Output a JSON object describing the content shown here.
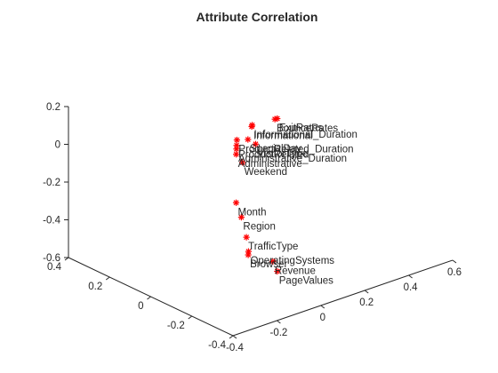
{
  "chart_data": {
    "type": "scatter",
    "title": "Attribute Correlation",
    "xlabel": "",
    "ylabel": "",
    "zlabel": "",
    "x_ticks": [
      "-0.4",
      "-0.2",
      "0",
      "0.2",
      "0.4"
    ],
    "y_ticks": [
      "-0.4",
      "-0.2",
      "0",
      "0.2",
      "0.4",
      "0.6"
    ],
    "z_ticks": [
      "-0.6",
      "-0.4",
      "-0.2",
      "0",
      "0.2"
    ],
    "xlim": [
      -0.4,
      0.4
    ],
    "ylim": [
      -0.4,
      0.6
    ],
    "zlim": [
      -0.6,
      0.2
    ],
    "grid": false,
    "marker": "*",
    "marker_color": "#ff0000",
    "points": [
      {
        "label": "Informational",
        "x": -0.16,
        "y": -0.09,
        "z": 0.26
      },
      {
        "label": "Informational_Duration",
        "x": -0.13,
        "y": -0.06,
        "z": 0.24
      },
      {
        "label": "ProductRelated_Duration",
        "x": -0.12,
        "y": -0.12,
        "z": 0.18
      },
      {
        "label": "Administrative",
        "x": -0.17,
        "y": -0.17,
        "z": 0.15
      },
      {
        "label": "Administrative_Duration",
        "x": -0.15,
        "y": -0.15,
        "z": 0.16
      },
      {
        "label": "ProductRelated",
        "x": -0.14,
        "y": -0.14,
        "z": 0.17
      },
      {
        "label": "Weekend",
        "x": -0.04,
        "y": -0.02,
        "z": -0.02
      },
      {
        "label": "SpecialDay",
        "x": 0.04,
        "y": 0.08,
        "z": 0.02
      },
      {
        "label": "VisitorType",
        "x": 0.12,
        "y": 0.19,
        "z": -0.09
      },
      {
        "label": "BounceRates",
        "x": 0.24,
        "y": 0.39,
        "z": -0.1
      },
      {
        "label": "ExitRates",
        "x": 0.25,
        "y": 0.41,
        "z": -0.11
      },
      {
        "label": "Month",
        "x": -0.02,
        "y": -0.03,
        "z": -0.24
      },
      {
        "label": "Region",
        "x": 0.04,
        "y": 0.05,
        "z": -0.38
      },
      {
        "label": "Revenue",
        "x": -0.22,
        "y": -0.05,
        "z": -0.44
      },
      {
        "label": "PageValues",
        "x": -0.22,
        "y": -0.03,
        "z": -0.5
      },
      {
        "label": "TrafficType",
        "x": 0.09,
        "y": 0.12,
        "z": -0.54
      },
      {
        "label": "Browser",
        "x": 0.06,
        "y": 0.1,
        "z": -0.61
      },
      {
        "label": "OperatingSystems",
        "x": 0.08,
        "y": 0.12,
        "z": -0.61
      }
    ]
  }
}
